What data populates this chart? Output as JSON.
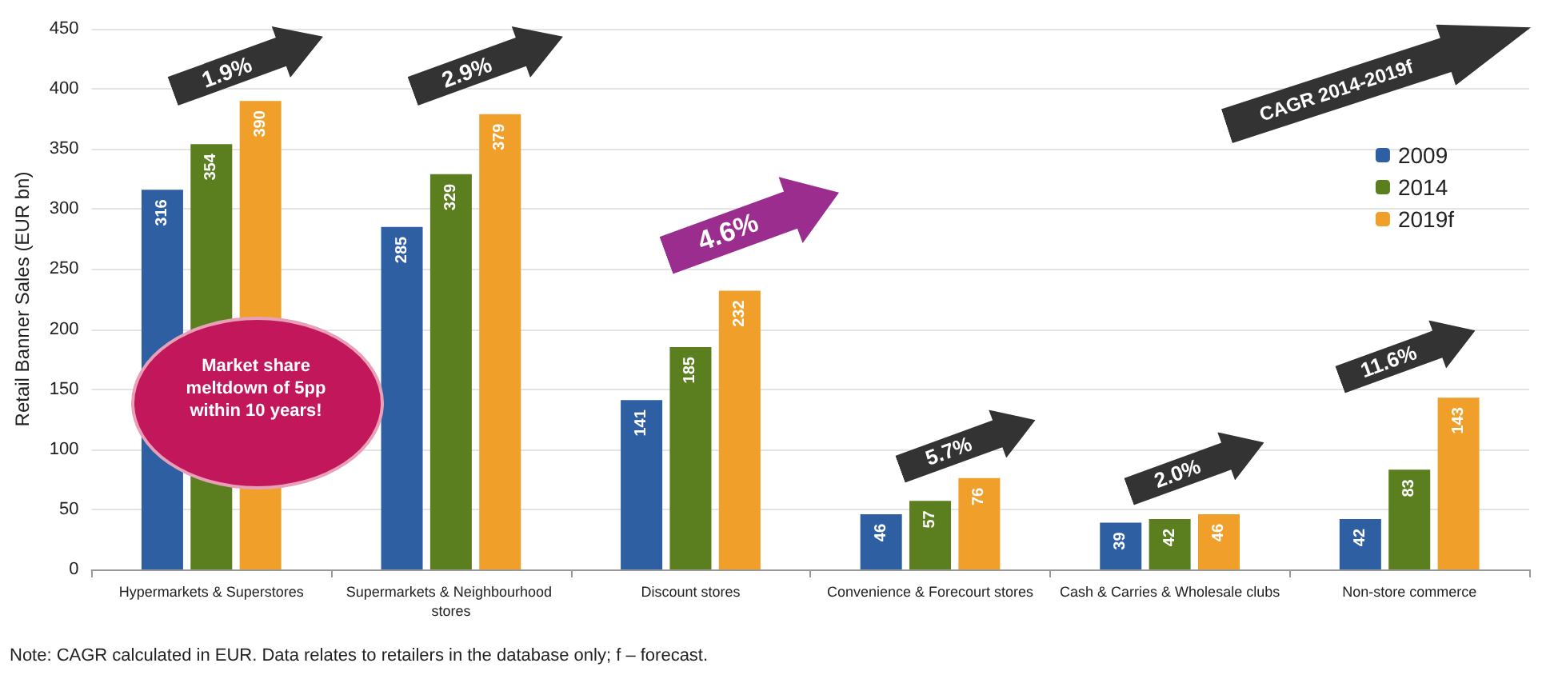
{
  "chart_data": {
    "type": "bar",
    "ylabel": "Retail Banner Sales (EUR bn)",
    "categories": [
      "Hypermarkets & Superstores",
      "Supermarkets & Neighbourhood stores",
      "Discount stores",
      "Convenience & Forecourt stores",
      "Cash & Carries & Wholesale clubs",
      "Non-store commerce"
    ],
    "series": [
      {
        "name": "2009",
        "color": "#2e5fa3",
        "values": [
          316,
          285,
          141,
          46,
          39,
          42
        ]
      },
      {
        "name": "2014",
        "color": "#5b7f1e",
        "values": [
          354,
          329,
          185,
          57,
          42,
          83
        ]
      },
      {
        "name": "2019f",
        "color": "#f0a02a",
        "values": [
          390,
          379,
          232,
          76,
          46,
          143
        ]
      }
    ],
    "ylim": [
      0,
      450
    ],
    "yticks": [
      0,
      50,
      100,
      150,
      200,
      250,
      300,
      350,
      400,
      450
    ],
    "grid": "y",
    "legend": "top right",
    "data_labels": true,
    "annotations": [
      "1.9%",
      "2.9%",
      "4.6%",
      "5.7%",
      "2.0%",
      "11.6%",
      "CAGR 2014-2019f",
      "Market share meltdown  of 5pp within 10 years!",
      "Note: CAGR calculated in EUR. Data relates to retailers in the database only; f – forecast."
    ]
  }
}
